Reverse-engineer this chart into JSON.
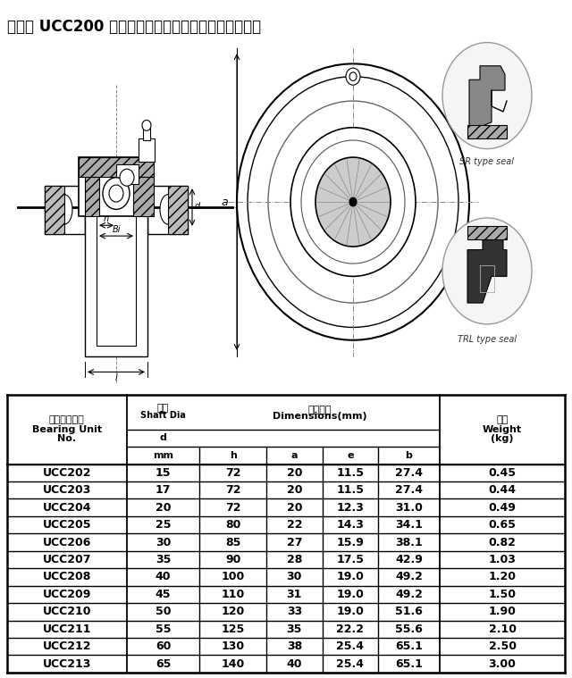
{
  "title": "环形座 UCC200 系列轴承规格、性能、型号对照参数表",
  "title_fontsize": 12,
  "bg_color": "#ffffff",
  "rows": [
    [
      "UCC202",
      "15",
      "72",
      "20",
      "11.5",
      "27.4",
      "0.45"
    ],
    [
      "UCC203",
      "17",
      "72",
      "20",
      "11.5",
      "27.4",
      "0.44"
    ],
    [
      "UCC204",
      "20",
      "72",
      "20",
      "12.3",
      "31.0",
      "0.49"
    ],
    [
      "UCC205",
      "25",
      "80",
      "22",
      "14.3",
      "34.1",
      "0.65"
    ],
    [
      "UCC206",
      "30",
      "85",
      "27",
      "15.9",
      "38.1",
      "0.82"
    ],
    [
      "UCC207",
      "35",
      "90",
      "28",
      "17.5",
      "42.9",
      "1.03"
    ],
    [
      "UCC208",
      "40",
      "100",
      "30",
      "19.0",
      "49.2",
      "1.20"
    ],
    [
      "UCC209",
      "45",
      "110",
      "31",
      "19.0",
      "49.2",
      "1.50"
    ],
    [
      "UCC210",
      "50",
      "120",
      "33",
      "19.0",
      "51.6",
      "1.90"
    ],
    [
      "UCC211",
      "55",
      "125",
      "35",
      "22.2",
      "55.6",
      "2.10"
    ],
    [
      "UCC212",
      "60",
      "130",
      "38",
      "25.4",
      "65.1",
      "2.50"
    ],
    [
      "UCC213",
      "65",
      "140",
      "40",
      "25.4",
      "65.1",
      "3.00"
    ]
  ],
  "line_color": "#000000",
  "text_color": "#000000",
  "gray_fill": "#c8c8c8",
  "hatch_color": "#666666"
}
